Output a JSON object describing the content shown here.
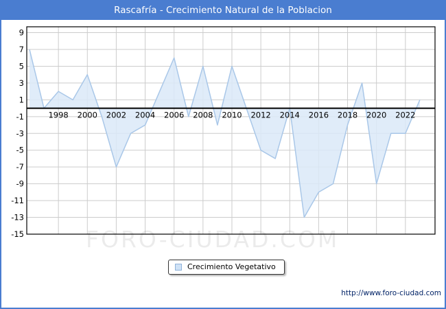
{
  "window": {
    "title": "Rascafría - Crecimiento Natural de la Poblacion"
  },
  "colors": {
    "titlebar": "#4a7dd0",
    "window_border": "#4a7dd0",
    "line": "#a9c7e8",
    "fill": "#dbe9f8",
    "grid": "#cccccc",
    "axis": "#000000",
    "tick_text": "#000000",
    "footer_link": "#002266"
  },
  "chart_data": {
    "type": "area",
    "title": "Rascafría - Crecimiento Natural de la Poblacion",
    "series_name": "Crecimiento Vegetativo",
    "x": [
      1996,
      1997,
      1998,
      1999,
      2000,
      2001,
      2002,
      2003,
      2004,
      2005,
      2006,
      2007,
      2008,
      2009,
      2010,
      2011,
      2012,
      2013,
      2014,
      2015,
      2016,
      2017,
      2018,
      2019,
      2020,
      2021,
      2022,
      2023
    ],
    "values": [
      7,
      0,
      2,
      1,
      4,
      -1,
      -7,
      -3,
      -2,
      2,
      6,
      -1,
      5,
      -2,
      5,
      0,
      -5,
      -6,
      0,
      -13,
      -10,
      -9,
      -2,
      3,
      -9,
      -3,
      -3,
      1
    ],
    "baseline": 0,
    "ylim": [
      -15,
      9.7
    ],
    "yticks": [
      9,
      7,
      5,
      3,
      1,
      -1,
      -3,
      -5,
      -7,
      -9,
      -11,
      -13,
      -15
    ],
    "xticks": [
      1998,
      2000,
      2002,
      2004,
      2006,
      2008,
      2010,
      2012,
      2014,
      2016,
      2018,
      2020,
      2022
    ],
    "xlabel": "",
    "ylabel": "",
    "grid": true,
    "legend_position": "bottom-center"
  },
  "legend": {
    "label": "Crecimiento Vegetativo"
  },
  "watermark": {
    "text": "FORO-CIUDAD.COM"
  },
  "footer": {
    "link": "http://www.foro-ciudad.com"
  }
}
